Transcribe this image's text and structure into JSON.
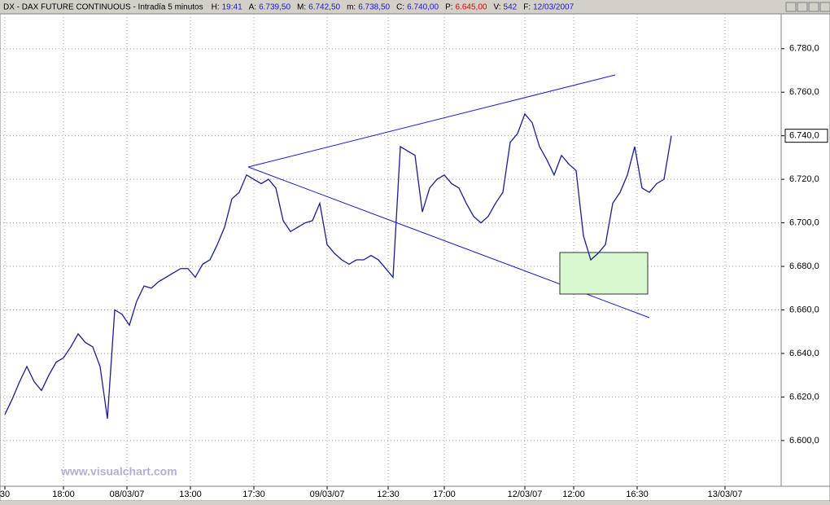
{
  "chart_data": {
    "type": "line",
    "title": "DX - DAX FUTURE CONTINUOUS - Intradía 5 minutos",
    "header_items": [
      {
        "label": "H:",
        "value": "19:41"
      },
      {
        "label": "A:",
        "value": "6.739,50"
      },
      {
        "label": "M:",
        "value": "6.742,50"
      },
      {
        "label": "m:",
        "value": "6.738,50"
      },
      {
        "label": "C:",
        "value": "6.740,00"
      },
      {
        "label": "P:",
        "value": "6.645,00"
      },
      {
        "label": "V:",
        "value": "542"
      },
      {
        "label": "F:",
        "value": "12/03/2007"
      }
    ],
    "watermark": "www.visualchart.com",
    "series": [
      {
        "name": "DX",
        "color": "#1c1c8f",
        "x": [
          2,
          5,
          8,
          11,
          14,
          17,
          20,
          23,
          26,
          29,
          32,
          35,
          38,
          41,
          44,
          47,
          50,
          53,
          56,
          59,
          62,
          65,
          68,
          71,
          74,
          77,
          80,
          83,
          86,
          89,
          92,
          95,
          98,
          101,
          104,
          107,
          110,
          113,
          116,
          119,
          122,
          125,
          128,
          131,
          134,
          137,
          140,
          143,
          146,
          149,
          152,
          155,
          158,
          161,
          164,
          167,
          170,
          173,
          176,
          179,
          182,
          185,
          188,
          191,
          194,
          197,
          200,
          203,
          206,
          209,
          212,
          215,
          218,
          221,
          224,
          227,
          230,
          233,
          236,
          239,
          242,
          245,
          248,
          251,
          254,
          257,
          260,
          263,
          266,
          269,
          272,
          275
        ],
        "values": [
          6612,
          6619,
          6627,
          6634,
          6627,
          6623,
          6630,
          6636,
          6638,
          6643,
          6649,
          6645,
          6643,
          6634,
          6610,
          6660,
          6658,
          6653,
          6664,
          6671,
          6670,
          6673,
          6675,
          6677,
          6679,
          6679,
          6675,
          6681,
          6683,
          6690,
          6698,
          6711,
          6714,
          6722,
          6720,
          6718,
          6720,
          6716,
          6701,
          6696,
          6698,
          6700,
          6701,
          6709,
          6690,
          6686,
          6683,
          6681,
          6683,
          6683,
          6685,
          6683,
          6679,
          6675,
          6735,
          6733,
          6731,
          6705,
          6716,
          6720,
          6722,
          6718,
          6716,
          6709,
          6703,
          6700,
          6703,
          6709,
          6714,
          6737,
          6741,
          6750,
          6746,
          6735,
          6729,
          6722,
          6731,
          6727,
          6724,
          6694,
          6683,
          6686,
          6690,
          6709,
          6714,
          6722,
          6735,
          6716,
          6714,
          6718,
          6720,
          6740
        ]
      }
    ],
    "last_price": {
      "value": 6740,
      "label": "6.740,0"
    },
    "xlim": [
      0,
      320
    ],
    "ylim": [
      6579,
      6796
    ],
    "xticks": [
      {
        "value": 2,
        "label": "30"
      },
      {
        "value": 26,
        "label": "18:00"
      },
      {
        "value": 52,
        "label": "08/03/07"
      },
      {
        "value": 78,
        "label": "13:00"
      },
      {
        "value": 104,
        "label": "17:30"
      },
      {
        "value": 134,
        "label": "09/03/07"
      },
      {
        "value": 159,
        "label": "12:30"
      },
      {
        "value": 182,
        "label": "17:00"
      },
      {
        "value": 215,
        "label": "12/03/07"
      },
      {
        "value": 235,
        "label": "12:00"
      },
      {
        "value": 261,
        "label": "16:30"
      },
      {
        "value": 297,
        "label": "13/03/07"
      }
    ],
    "yticks": [
      {
        "value": 6600,
        "label": "6.600,0"
      },
      {
        "value": 6620,
        "label": "6.620,0"
      },
      {
        "value": 6640,
        "label": "6.640,0"
      },
      {
        "value": 6660,
        "label": "6.660,0"
      },
      {
        "value": 6680,
        "label": "6.680,0"
      },
      {
        "value": 6700,
        "label": "6.700,0"
      },
      {
        "value": 6720,
        "label": "6.720,0"
      },
      {
        "value": 6740,
        "label": "6.740,0"
      },
      {
        "value": 6760,
        "label": "6.760,0"
      },
      {
        "value": 6780,
        "label": "6.780,0"
      }
    ],
    "grid": true
  }
}
